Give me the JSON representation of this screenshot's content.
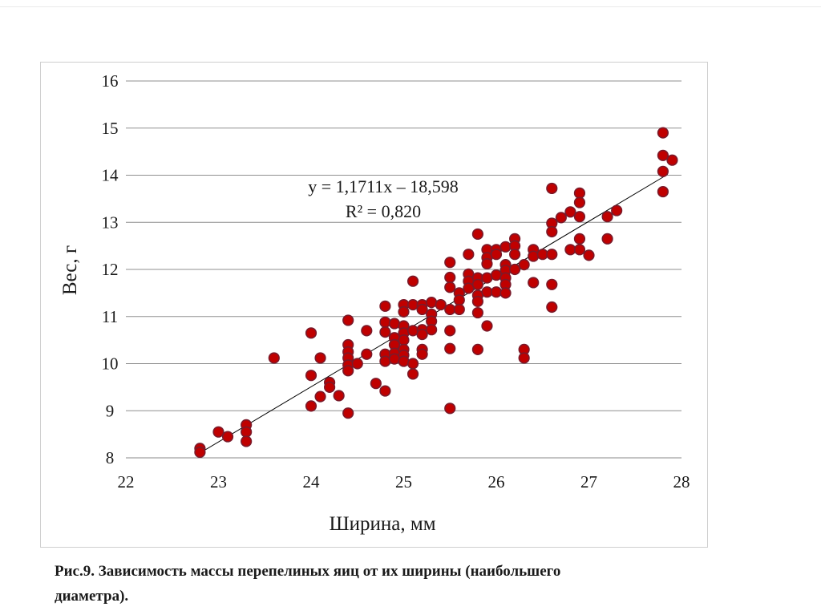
{
  "chart_data": {
    "type": "scatter",
    "xlabel": "Ширина, мм",
    "ylabel": "Вес, г",
    "xlim": [
      22,
      28
    ],
    "ylim": [
      8,
      16
    ],
    "x_ticks": [
      "22",
      "23",
      "24",
      "25",
      "26",
      "27",
      "28"
    ],
    "y_ticks": [
      "8",
      "9",
      "10",
      "11",
      "12",
      "13",
      "14",
      "15",
      "16"
    ],
    "grid": "horizontal",
    "marker_color": "#c00000",
    "marker_edge_color": "#7a1a2a",
    "trendline": {
      "slope": 1.1711,
      "intercept": -18.598,
      "x_range": [
        22.8,
        27.85
      ]
    },
    "equation_label": "y = 1,1711x – 18,598",
    "r2_label": "R² = 0,820",
    "points": [
      [
        22.8,
        8.2
      ],
      [
        22.8,
        8.12
      ],
      [
        23.0,
        8.55
      ],
      [
        23.1,
        8.45
      ],
      [
        23.3,
        8.7
      ],
      [
        23.3,
        8.55
      ],
      [
        23.3,
        8.35
      ],
      [
        23.6,
        10.12
      ],
      [
        24.0,
        10.65
      ],
      [
        24.0,
        9.75
      ],
      [
        24.0,
        9.1
      ],
      [
        24.1,
        10.12
      ],
      [
        24.1,
        9.3
      ],
      [
        24.2,
        9.6
      ],
      [
        24.2,
        9.5
      ],
      [
        24.3,
        9.32
      ],
      [
        24.4,
        10.92
      ],
      [
        24.4,
        10.4
      ],
      [
        24.4,
        10.25
      ],
      [
        24.4,
        10.12
      ],
      [
        24.4,
        9.97
      ],
      [
        24.4,
        9.85
      ],
      [
        24.4,
        8.95
      ],
      [
        24.5,
        10.0
      ],
      [
        24.6,
        10.7
      ],
      [
        24.6,
        10.2
      ],
      [
        24.7,
        9.58
      ],
      [
        24.8,
        11.22
      ],
      [
        24.8,
        10.88
      ],
      [
        24.8,
        10.67
      ],
      [
        24.8,
        10.2
      ],
      [
        24.8,
        10.05
      ],
      [
        24.8,
        9.42
      ],
      [
        24.9,
        10.85
      ],
      [
        24.9,
        10.55
      ],
      [
        24.9,
        10.4
      ],
      [
        24.9,
        10.22
      ],
      [
        24.9,
        10.1
      ],
      [
        25.0,
        11.25
      ],
      [
        25.0,
        11.1
      ],
      [
        25.0,
        10.8
      ],
      [
        25.0,
        10.65
      ],
      [
        25.0,
        10.5
      ],
      [
        25.0,
        10.3
      ],
      [
        25.0,
        10.18
      ],
      [
        25.0,
        10.05
      ],
      [
        25.1,
        11.75
      ],
      [
        25.1,
        11.25
      ],
      [
        25.1,
        10.7
      ],
      [
        25.1,
        10.0
      ],
      [
        25.1,
        9.78
      ],
      [
        25.2,
        11.25
      ],
      [
        25.2,
        11.15
      ],
      [
        25.2,
        10.72
      ],
      [
        25.2,
        10.62
      ],
      [
        25.2,
        10.3
      ],
      [
        25.2,
        10.2
      ],
      [
        25.3,
        11.3
      ],
      [
        25.3,
        11.05
      ],
      [
        25.3,
        10.9
      ],
      [
        25.3,
        10.72
      ],
      [
        25.4,
        11.25
      ],
      [
        25.5,
        12.15
      ],
      [
        25.5,
        11.83
      ],
      [
        25.5,
        11.62
      ],
      [
        25.5,
        11.15
      ],
      [
        25.5,
        10.7
      ],
      [
        25.5,
        10.32
      ],
      [
        25.5,
        9.05
      ],
      [
        25.6,
        11.5
      ],
      [
        25.6,
        11.35
      ],
      [
        25.6,
        11.15
      ],
      [
        25.7,
        12.32
      ],
      [
        25.7,
        11.9
      ],
      [
        25.7,
        11.75
      ],
      [
        25.7,
        11.6
      ],
      [
        25.8,
        12.75
      ],
      [
        25.8,
        11.82
      ],
      [
        25.8,
        11.68
      ],
      [
        25.8,
        11.45
      ],
      [
        25.8,
        11.32
      ],
      [
        25.8,
        11.08
      ],
      [
        25.8,
        10.3
      ],
      [
        25.9,
        12.42
      ],
      [
        25.9,
        12.25
      ],
      [
        25.9,
        12.12
      ],
      [
        25.9,
        11.82
      ],
      [
        25.9,
        11.52
      ],
      [
        25.9,
        10.8
      ],
      [
        26.0,
        12.42
      ],
      [
        26.0,
        12.32
      ],
      [
        26.0,
        11.88
      ],
      [
        26.0,
        11.52
      ],
      [
        26.1,
        12.48
      ],
      [
        26.1,
        12.1
      ],
      [
        26.1,
        11.98
      ],
      [
        26.1,
        11.82
      ],
      [
        26.1,
        11.68
      ],
      [
        26.1,
        11.5
      ],
      [
        26.2,
        12.65
      ],
      [
        26.2,
        12.5
      ],
      [
        26.2,
        12.32
      ],
      [
        26.2,
        12.0
      ],
      [
        26.3,
        12.1
      ],
      [
        26.3,
        10.3
      ],
      [
        26.3,
        10.12
      ],
      [
        26.4,
        12.42
      ],
      [
        26.4,
        12.28
      ],
      [
        26.4,
        11.72
      ],
      [
        26.5,
        12.32
      ],
      [
        26.6,
        13.72
      ],
      [
        26.6,
        12.98
      ],
      [
        26.6,
        12.8
      ],
      [
        26.6,
        12.32
      ],
      [
        26.6,
        11.68
      ],
      [
        26.6,
        11.2
      ],
      [
        26.7,
        13.1
      ],
      [
        26.8,
        13.22
      ],
      [
        26.8,
        12.42
      ],
      [
        26.9,
        13.62
      ],
      [
        26.9,
        13.42
      ],
      [
        26.9,
        13.12
      ],
      [
        26.9,
        12.65
      ],
      [
        26.9,
        12.42
      ],
      [
        27.0,
        12.3
      ],
      [
        27.2,
        13.12
      ],
      [
        27.2,
        12.65
      ],
      [
        27.3,
        13.25
      ],
      [
        27.8,
        14.9
      ],
      [
        27.8,
        14.42
      ],
      [
        27.8,
        14.08
      ],
      [
        27.8,
        13.65
      ],
      [
        27.9,
        14.32
      ]
    ]
  },
  "caption": {
    "line1": "Рис.9. Зависимость массы перепелиных яиц от их ширины (наибольшего",
    "line2": "диаметра)."
  }
}
